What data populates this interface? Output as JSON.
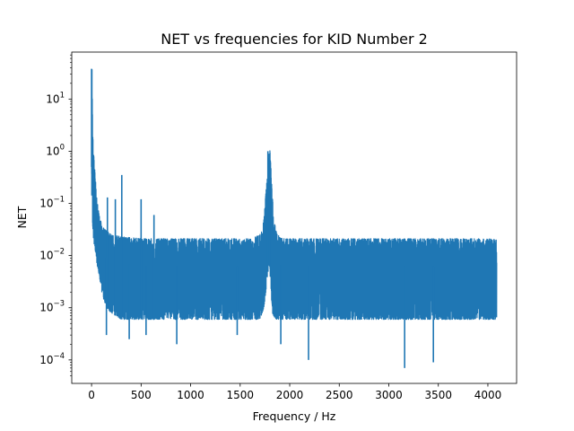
{
  "chart_data": {
    "type": "line",
    "title": "NET vs frequencies for KID Number 2",
    "xlabel": "Frequency / Hz",
    "ylabel": "NET",
    "xlim": [
      -200,
      4290
    ],
    "ylim_log10": [
      -4.45,
      1.9
    ],
    "yscale": "log",
    "grid": false,
    "line_color": "#1f77b4",
    "x_ticks": [
      0,
      500,
      1000,
      1500,
      2000,
      2500,
      3000,
      3500,
      4000
    ],
    "x_tick_labels": [
      "0",
      "500",
      "1000",
      "1500",
      "2000",
      "2500",
      "3000",
      "3500",
      "4000"
    ],
    "y_ticks": [
      0.0001,
      0.001,
      0.01,
      0.1,
      1,
      10
    ],
    "y_tick_labels": [
      {
        "base": "10",
        "exp": "−4"
      },
      {
        "base": "10",
        "exp": "−3"
      },
      {
        "base": "10",
        "exp": "−2"
      },
      {
        "base": "10",
        "exp": "−1"
      },
      {
        "base": "10",
        "exp": "0"
      },
      {
        "base": "10",
        "exp": "1"
      }
    ],
    "series": [
      {
        "x": [
          0,
          2,
          4,
          6,
          10,
          15,
          20,
          30,
          40,
          50,
          60,
          80,
          100,
          120,
          150,
          200,
          250,
          300,
          400,
          500,
          700,
          1000,
          1300,
          1600,
          1700,
          1740,
          1770,
          1790,
          1800,
          1810,
          1830,
          1860,
          1900,
          2000,
          2500,
          3000,
          3500,
          4000,
          4090
        ],
        "y_upper": [
          5,
          38,
          25,
          15,
          4,
          1.5,
          1.0,
          0.5,
          0.3,
          0.15,
          0.1,
          0.06,
          0.04,
          0.035,
          0.03,
          0.025,
          0.024,
          0.023,
          0.022,
          0.021,
          0.021,
          0.021,
          0.021,
          0.021,
          0.025,
          0.05,
          0.3,
          1.0,
          1.1,
          0.5,
          0.1,
          0.03,
          0.022,
          0.021,
          0.021,
          0.021,
          0.021,
          0.021,
          0.02
        ],
        "y_lower": [
          0.5,
          0.2,
          0.1,
          0.05,
          0.04,
          0.03,
          0.02,
          0.015,
          0.01,
          0.008,
          0.006,
          0.004,
          0.002,
          0.0015,
          0.001,
          0.0008,
          0.0007,
          0.0006,
          0.0006,
          0.0006,
          0.0006,
          0.0006,
          0.0006,
          0.0006,
          0.0006,
          0.001,
          0.003,
          0.008,
          0.005,
          0.002,
          0.0007,
          0.0006,
          0.0006,
          0.0006,
          0.0006,
          0.0006,
          0.0006,
          0.0006,
          0.0006
        ],
        "spikes": [
          {
            "x": 0,
            "y": 38
          },
          {
            "x": 3,
            "y": 37
          },
          {
            "x": 160,
            "y": 0.13
          },
          {
            "x": 240,
            "y": 0.12
          },
          {
            "x": 305,
            "y": 0.35
          },
          {
            "x": 500,
            "y": 0.12
          },
          {
            "x": 630,
            "y": 0.06
          },
          {
            "x": 1780,
            "y": 1.0
          },
          {
            "x": 1795,
            "y": 0.9
          }
        ],
        "dips": [
          {
            "x": 150,
            "y": 0.0003
          },
          {
            "x": 380,
            "y": 0.00025
          },
          {
            "x": 550,
            "y": 0.0003
          },
          {
            "x": 860,
            "y": 0.0002
          },
          {
            "x": 1470,
            "y": 0.0003
          },
          {
            "x": 1910,
            "y": 0.0002
          },
          {
            "x": 2190,
            "y": 0.0001
          },
          {
            "x": 3160,
            "y": 7e-05
          },
          {
            "x": 3450,
            "y": 9e-05
          }
        ]
      }
    ]
  }
}
